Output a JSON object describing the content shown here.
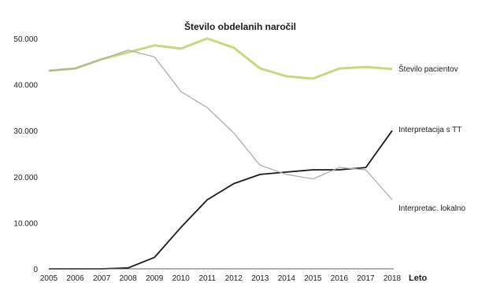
{
  "chart_data": {
    "type": "line",
    "title": "Število obdelanih naročil",
    "xlabel": "Leto",
    "ylabel": "",
    "x": [
      2005,
      2006,
      2007,
      2008,
      2009,
      2010,
      2011,
      2012,
      2013,
      2014,
      2015,
      2016,
      2017,
      2018
    ],
    "xticks": [
      "2005",
      "2006",
      "2007",
      "2008",
      "2009",
      "2010",
      "2011",
      "2012",
      "2013",
      "2014",
      "2015",
      "2016",
      "2017",
      "2018"
    ],
    "yticks": [
      "0",
      "10.000",
      "20.000",
      "30.000",
      "40.000",
      "50.000"
    ],
    "ylim": [
      0,
      50000
    ],
    "grid": false,
    "series": [
      {
        "name": "Število pacientov",
        "color": "#c9d87a",
        "values": [
          43000,
          43500,
          45500,
          47000,
          48500,
          47800,
          50000,
          48000,
          43500,
          41800,
          41300,
          43500,
          43800,
          43400
        ]
      },
      {
        "name": "Interpretacija s TT",
        "color": "#1a1a1a",
        "values": [
          0,
          0,
          0,
          200,
          2500,
          9000,
          15000,
          18500,
          20500,
          21000,
          21500,
          21500,
          22000,
          30000
        ]
      },
      {
        "name": "Interpretac. lokalno",
        "color": "#a8a8a8",
        "values": [
          43000,
          43500,
          45500,
          47500,
          46000,
          38500,
          35000,
          29500,
          22500,
          20500,
          19500,
          22000,
          21500,
          15000
        ]
      }
    ]
  }
}
